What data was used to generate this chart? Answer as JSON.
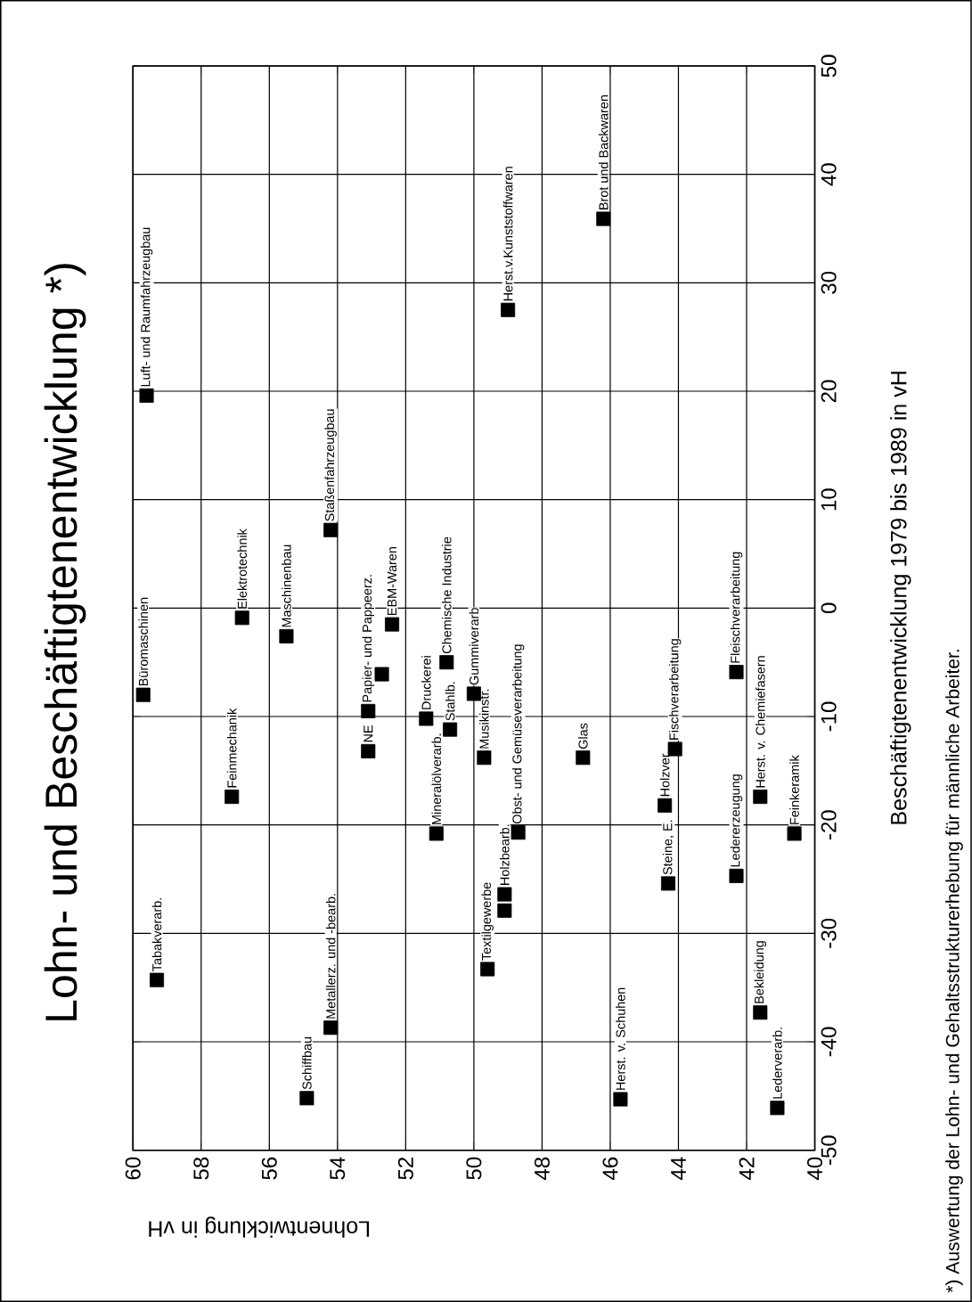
{
  "chart_data": {
    "type": "scatter",
    "title": "Lohn- und Beschäftigtenentwicklung *)",
    "xlabel": "Lohnentwicklung in vH",
    "ylabel": "Beschäftigtenentwicklung 1979 bis 1989 in vH",
    "x": [
      59.3,
      54.9,
      54.2,
      45.7,
      41.1,
      41.6,
      49.6,
      49.1,
      49.1,
      44.3,
      42.3,
      40.6,
      51.1,
      48.7,
      44.4,
      41.6,
      57.1,
      53.1,
      49.7,
      46.8,
      44.1,
      50.7,
      51.4,
      53.1,
      59.7,
      50.0,
      50.8,
      52.7,
      42.3,
      55.5,
      52.4,
      56.8,
      54.2,
      59.6,
      49.0,
      46.2
    ],
    "values": [
      -34.3,
      -45.2,
      -38.7,
      -45.3,
      -46.1,
      -37.3,
      -33.3,
      -26.4,
      -27.9,
      -25.4,
      -24.7,
      -20.8,
      -20.8,
      -20.7,
      -18.2,
      -17.4,
      -17.4,
      -13.2,
      -13.8,
      -13.8,
      -13.0,
      -11.2,
      -10.2,
      -9.5,
      -8.0,
      -7.9,
      -5.0,
      -6.1,
      -5.9,
      -2.6,
      -1.5,
      -0.9,
      7.2,
      19.6,
      27.5,
      35.9
    ],
    "color": "#000000",
    "marker": "square",
    "grid": true,
    "xlim": [
      60,
      40
    ],
    "xticks": [
      60,
      58,
      56,
      54,
      52,
      50,
      48,
      46,
      44,
      42,
      40
    ],
    "ylim": [
      -50,
      50
    ],
    "yticks": [
      -50,
      -40,
      -30,
      -20,
      -10,
      0,
      10,
      20,
      30,
      40,
      50
    ],
    "annotations": [
      {
        "text": "Tabakverarb.",
        "x": 59.3,
        "y": -34.3
      },
      {
        "text": "Schiffbau",
        "x": 54.9,
        "y": -45.2
      },
      {
        "text": "Metallerz. und -bearb.",
        "x": 54.2,
        "y": -38.7
      },
      {
        "text": "Herst. v. Schuhen",
        "x": 45.7,
        "y": -45.3
      },
      {
        "text": "Lederverarb.",
        "x": 41.1,
        "y": -46.1
      },
      {
        "text": "Bekleidung",
        "x": 41.6,
        "y": -37.3
      },
      {
        "text": "Textilgewerbe",
        "x": 49.6,
        "y": -33.3
      },
      {
        "text": "Holzbearb.",
        "x": 49.1,
        "y": -26.4
      },
      {
        "text": "Steine, E.",
        "x": 44.3,
        "y": -25.4
      },
      {
        "text": "Ledererzeugung",
        "x": 42.3,
        "y": -24.7
      },
      {
        "text": "Feinkeramik",
        "x": 40.6,
        "y": -20.8
      },
      {
        "text": "Mineralölverarb.",
        "x": 51.1,
        "y": -20.8
      },
      {
        "text": "Obst- und Gemüseverarbeitung",
        "x": 48.7,
        "y": -20.7
      },
      {
        "text": "Holzver.",
        "x": 44.4,
        "y": -18.2
      },
      {
        "text": "Herst. v. Chemiefasern",
        "x": 41.6,
        "y": -17.4
      },
      {
        "text": "Feinmechanik",
        "x": 57.1,
        "y": -17.4
      },
      {
        "text": "NE",
        "x": 53.1,
        "y": -13.2
      },
      {
        "text": "Musikinstr.",
        "x": 49.7,
        "y": -13.8
      },
      {
        "text": "Glas",
        "x": 46.8,
        "y": -13.8
      },
      {
        "text": "Fischverarbeitung",
        "x": 44.1,
        "y": -13.0
      },
      {
        "text": "Stahlb.",
        "x": 50.7,
        "y": -11.2
      },
      {
        "text": "Druckerei",
        "x": 51.4,
        "y": -10.2
      },
      {
        "text": "Papier- und Pappeerz.",
        "x": 53.1,
        "y": -9.5
      },
      {
        "text": "Büromaschinen",
        "x": 59.7,
        "y": -8.0
      },
      {
        "text": "Gummiverarb",
        "x": 50.0,
        "y": -7.9
      },
      {
        "text": "Chemische Industrie",
        "x": 50.8,
        "y": -5.0
      },
      {
        "text": "Fleischverarbeitung",
        "x": 42.3,
        "y": -5.9
      },
      {
        "text": "Maschinenbau",
        "x": 55.5,
        "y": -2.6
      },
      {
        "text": "EBM-Waren",
        "x": 52.4,
        "y": -1.5
      },
      {
        "text": "Elektrotechnik",
        "x": 56.8,
        "y": -0.9
      },
      {
        "text": "Staßenfahrzeugbau",
        "x": 54.2,
        "y": 7.2
      },
      {
        "text": "Luft- und Raumfahrzeugbau",
        "x": 59.6,
        "y": 19.6
      },
      {
        "text": "Herst.v.Kunststoffwaren",
        "x": 49.0,
        "y": 27.5
      },
      {
        "text": "Brot und Backwaren",
        "x": 46.2,
        "y": 35.9
      },
      "*) Auswertung der Lohn- und Gehaltsstrukturerhebung für männliche Arbeiter."
    ]
  }
}
